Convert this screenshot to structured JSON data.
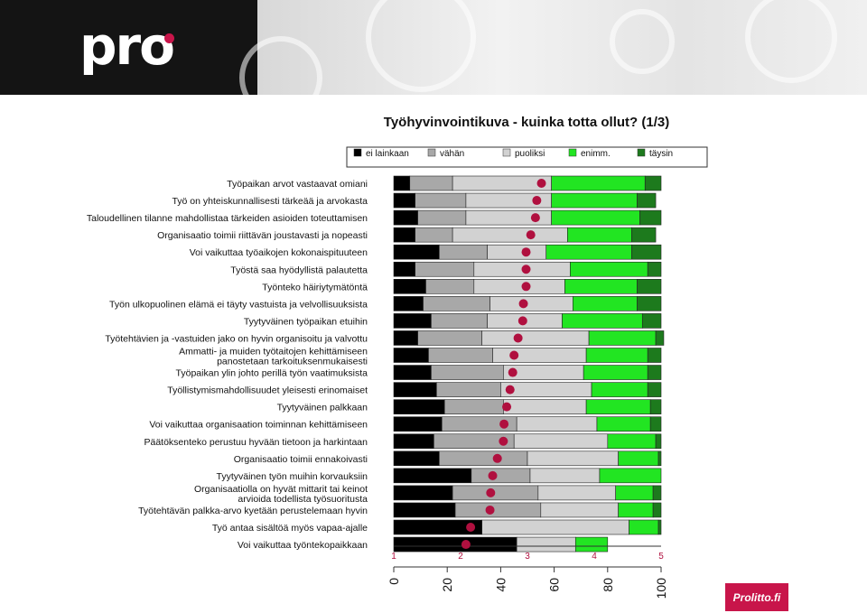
{
  "header": {
    "logo_text": "pro",
    "accent_color": "#c8154a"
  },
  "footer": {
    "badge_text": "Prolitto.fi"
  },
  "chart_data": {
    "type": "bar",
    "orientation": "horizontal",
    "stacked": true,
    "title": "Työhyvinvointikuva - kuinka totta ollut? (1/3)",
    "legend": {
      "placement": "top",
      "entries": [
        {
          "label": "ei lainkaan",
          "color": "#000000"
        },
        {
          "label": "vähän",
          "color": "#a8a8a8"
        },
        {
          "label": "puoliksi",
          "color": "#d2d2d2"
        },
        {
          "label": "enimm.",
          "color": "#22e522"
        },
        {
          "label": "täysin",
          "color": "#1d7a1d"
        }
      ]
    },
    "x_axis": {
      "ticks": [
        "0",
        "20",
        "40",
        "60",
        "80",
        "100"
      ],
      "range": [
        0,
        100
      ]
    },
    "mean_scale": {
      "ticks": [
        "1",
        "2",
        "3",
        "4",
        "5"
      ],
      "range": [
        1,
        5
      ],
      "marker_color": "#b0103f"
    },
    "categories": [
      [
        "Työpaikan arvot vastaavat omiani"
      ],
      [
        "Työ on yhteiskunnallisesti tärkeää ja arvokasta"
      ],
      [
        "Taloudellinen tilanne mahdollistaa tärkeiden asioiden toteuttamisen"
      ],
      [
        "Organisaatio toimii riittävän joustavasti ja nopeasti"
      ],
      [
        "Voi vaikuttaa työaikojen kokonaispituuteen"
      ],
      [
        "Työstä saa hyödyllistä palautetta"
      ],
      [
        "Työnteko häiriytymätöntä"
      ],
      [
        "Työn ulkopuolinen elämä ei täyty vastuista ja velvollisuuksista"
      ],
      [
        "Tyytyväinen työpaikan etuihin"
      ],
      [
        "Työtehtävien ja -vastuiden jako on hyvin organisoitu ja valvottu"
      ],
      [
        "Ammatti- ja muiden työtaitojen kehittämiseen",
        "panostetaan tarkoituksenmukaisesti"
      ],
      [
        "Työpaikan ylin johto perillä työn vaatimuksista"
      ],
      [
        "Työllistymismahdollisuudet yleisesti erinomaiset"
      ],
      [
        "Tyytyväinen palkkaan"
      ],
      [
        "Voi vaikuttaa organisaation toiminnan kehittämiseen"
      ],
      [
        "Päätöksenteko perustuu hyvään tietoon ja harkintaan"
      ],
      [
        "Organisaatio toimii ennakoivasti"
      ],
      [
        "Tyytyväinen työn muihin korvauksiin"
      ],
      [
        "Organisaatiolla on hyvät mittarit tai keinot",
        "arvioida todellista työsuoritusta"
      ],
      [
        "Työtehtävän palkka-arvo kyetään perustelemaan hyvin"
      ],
      [
        "Työ antaa sisältöä myös vapaa-ajalle"
      ],
      [
        "Voi vaikuttaa työntekopaikkaan"
      ]
    ],
    "series": [
      {
        "values": [
          6,
          8,
          9,
          8,
          17,
          8,
          12,
          11,
          14,
          9,
          13,
          14,
          16,
          19,
          18,
          15,
          17,
          29,
          22,
          23,
          33,
          46
        ]
      },
      {
        "values": [
          16,
          19,
          18,
          14,
          18,
          22,
          18,
          25,
          21,
          24,
          24,
          27,
          24,
          22,
          28,
          30,
          33,
          22,
          32,
          32,
          0,
          0
        ]
      },
      {
        "values": [
          37,
          32,
          32,
          43,
          22,
          36,
          34,
          31,
          28,
          40,
          35,
          30,
          34,
          31,
          30,
          35,
          34,
          26,
          29,
          29,
          55,
          22
        ]
      },
      {
        "values": [
          35,
          32,
          33,
          24,
          32,
          29,
          27,
          24,
          30,
          25,
          23,
          24,
          21,
          24,
          20,
          18,
          15,
          23,
          14,
          13,
          11,
          12
        ]
      },
      {
        "values": [
          6,
          7,
          8,
          9,
          11,
          5,
          9,
          9,
          7,
          3,
          5,
          5,
          5,
          4,
          4,
          2,
          1,
          0,
          3,
          3,
          1,
          0
        ]
      }
    ],
    "means": [
      3.21,
      3.14,
      3.12,
      3.05,
      2.98,
      2.98,
      2.98,
      2.94,
      2.93,
      2.86,
      2.8,
      2.78,
      2.74,
      2.69,
      2.65,
      2.64,
      2.55,
      2.48,
      2.45,
      2.44,
      2.15,
      2.08
    ]
  }
}
